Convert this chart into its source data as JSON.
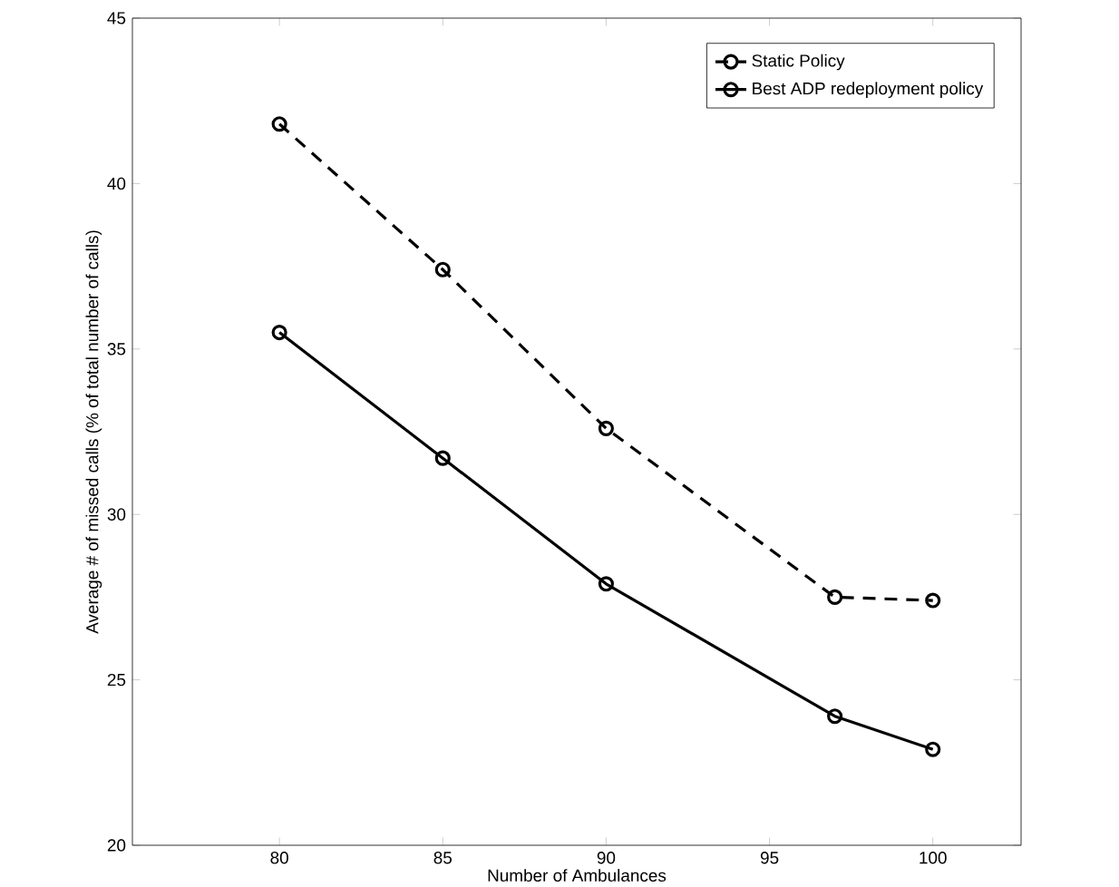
{
  "chart_data": {
    "type": "line",
    "xlabel": "Number of Ambulances",
    "ylabel": "Average # of missed calls (% of total number of calls)",
    "x": [
      80,
      85,
      90,
      97,
      100
    ],
    "series": [
      {
        "name": "Static Policy",
        "color": "#000000",
        "line_style": "dashed",
        "values": [
          41.8,
          37.4,
          32.6,
          27.5,
          27.4
        ]
      },
      {
        "name": "Best ADP redeployment policy",
        "color": "#000000",
        "line_style": "solid",
        "values": [
          35.5,
          31.7,
          27.9,
          23.9,
          22.9
        ]
      }
    ],
    "xlim": [
      75.5,
      102.7
    ],
    "ylim": [
      20,
      45
    ],
    "xticks": [
      80,
      85,
      90,
      95,
      100
    ],
    "yticks": [
      20,
      25,
      30,
      35,
      40,
      45
    ],
    "marker": "circle",
    "legend": "top right",
    "grid": false
  }
}
